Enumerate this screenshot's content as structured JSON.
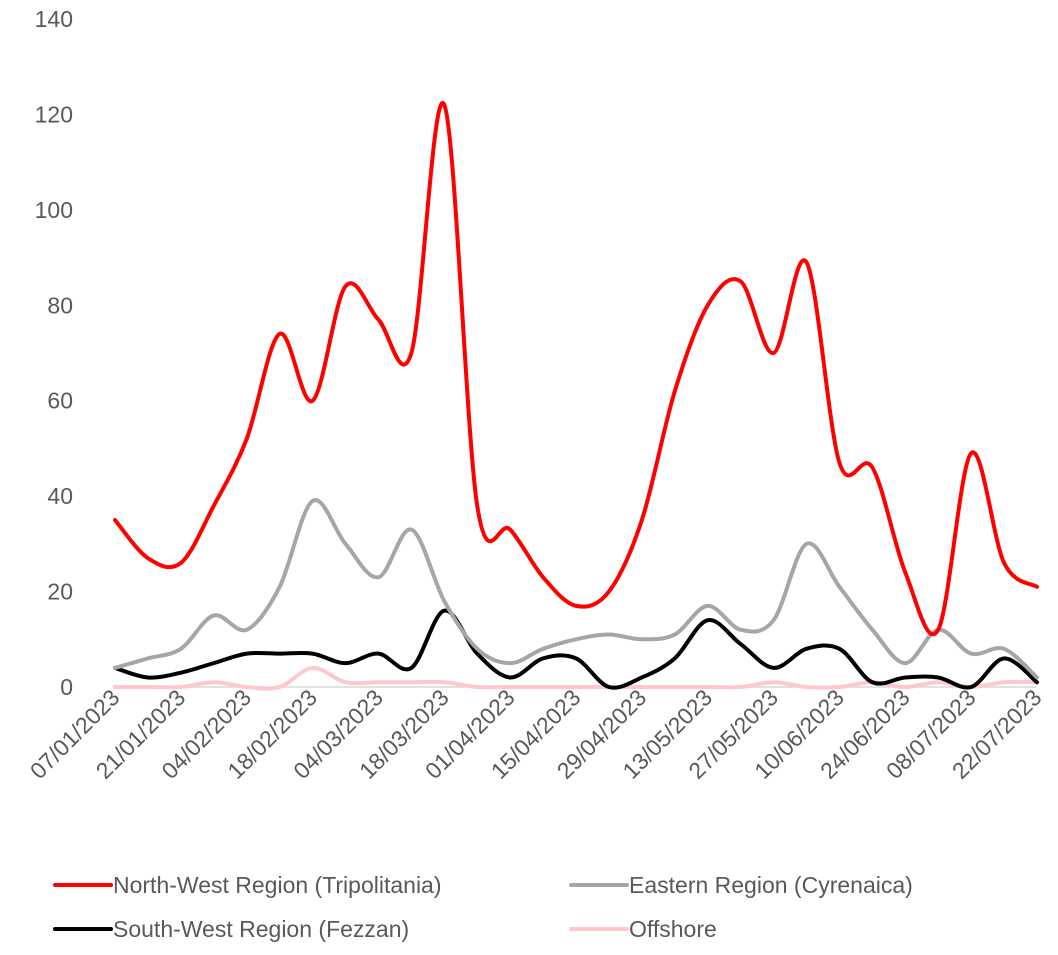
{
  "chart_data": {
    "type": "line",
    "title": "",
    "xlabel": "",
    "ylabel": "",
    "ylim": [
      0,
      140
    ],
    "yticks": [
      0,
      20,
      40,
      60,
      80,
      100,
      120,
      140
    ],
    "grid": false,
    "legend_position": "bottom",
    "x_tick_labels": [
      "07/01/2023",
      "21/01/2023",
      "04/02/2023",
      "18/02/2023",
      "04/03/2023",
      "18/03/2023",
      "01/04/2023",
      "15/04/2023",
      "29/04/2023",
      "13/05/2023",
      "27/05/2023",
      "10/06/2023",
      "24/06/2023",
      "08/07/2023",
      "22/07/2023"
    ],
    "x": [
      "07/01/2023",
      "14/01/2023",
      "21/01/2023",
      "28/01/2023",
      "04/02/2023",
      "11/02/2023",
      "18/02/2023",
      "25/02/2023",
      "04/03/2023",
      "11/03/2023",
      "18/03/2023",
      "25/03/2023",
      "01/04/2023",
      "08/04/2023",
      "15/04/2023",
      "22/04/2023",
      "29/04/2023",
      "06/05/2023",
      "13/05/2023",
      "20/05/2023",
      "27/05/2023",
      "03/06/2023",
      "10/06/2023",
      "17/06/2023",
      "24/06/2023",
      "01/07/2023",
      "08/07/2023",
      "15/07/2023",
      "22/07/2023"
    ],
    "series": [
      {
        "name": "North-West Region (Tripolitania)",
        "color": "#ff0000",
        "values": [
          35,
          27,
          26,
          38,
          52,
          74,
          60,
          84,
          77,
          70,
          122,
          38,
          33,
          23,
          17,
          20,
          35,
          62,
          80,
          85,
          70,
          89,
          47,
          46,
          24,
          12,
          49,
          26,
          21
        ]
      },
      {
        "name": "Eastern Region (Cyrenaica)",
        "color": "#a6a6a6",
        "values": [
          4,
          6,
          8,
          15,
          12,
          21,
          39,
          30,
          23,
          33,
          18,
          8,
          5,
          8,
          10,
          11,
          10,
          11,
          17,
          12,
          14,
          30,
          21,
          12,
          5,
          12,
          7,
          8,
          2
        ]
      },
      {
        "name": "South-West Region (Fezzan)",
        "color": "#000000",
        "values": [
          4,
          2,
          3,
          5,
          7,
          7,
          7,
          5,
          7,
          4,
          16,
          7,
          2,
          6,
          6,
          0,
          2,
          6,
          14,
          9,
          4,
          8,
          8,
          1,
          2,
          2,
          0,
          6,
          1
        ]
      },
      {
        "name": "Offshore",
        "color": "#ffc7ce",
        "values": [
          0,
          0,
          0,
          1,
          0,
          0,
          4,
          1,
          1,
          1,
          1,
          0,
          0,
          0,
          0,
          0,
          0,
          0,
          0,
          0,
          1,
          0,
          0,
          1,
          0,
          1,
          0,
          1,
          1
        ]
      }
    ]
  }
}
